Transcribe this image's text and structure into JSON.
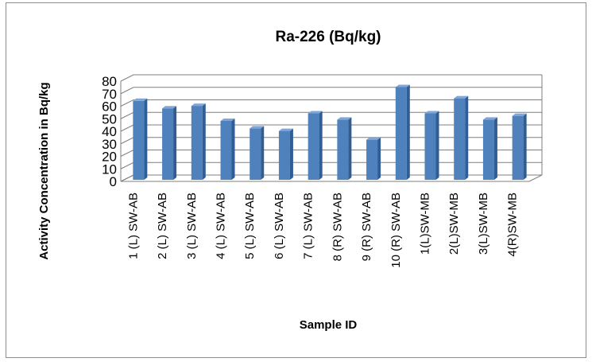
{
  "chart_data": {
    "type": "bar",
    "title": "Ra-226 (Bq/kg)",
    "xlabel": "Sample ID",
    "ylabel": "Activity Concentration in Bq/kg",
    "categories": [
      "1 (L) SW-AB",
      "2 (L) SW-AB",
      "3 (L) SW-AB",
      "4 (L) SW-AB",
      "5 (L) SW-AB",
      "6 (L) SW-AB",
      "7 (L) SW-AB",
      "8 (R) SW-AB",
      "9 (R) SW-AB",
      "10 (R) SW-AB",
      "1(L)SW-MB",
      "2(L)SW-MB",
      "3(L)SW-MB",
      "4(R)SW-MB"
    ],
    "values": [
      63,
      57,
      59,
      47,
      41,
      39,
      53,
      48,
      32,
      74,
      53,
      65,
      48,
      51
    ],
    "ylim": [
      0,
      80
    ],
    "yticks": [
      0,
      10,
      20,
      30,
      40,
      50,
      60,
      70,
      80
    ],
    "grid": true,
    "legend": "none",
    "style": "3d-column",
    "colors": {
      "bar_front": "#4f81bd",
      "bar_side": "#2f5d94",
      "bar_top": "#7fa6d8",
      "grid": "#7f7f7f"
    }
  }
}
